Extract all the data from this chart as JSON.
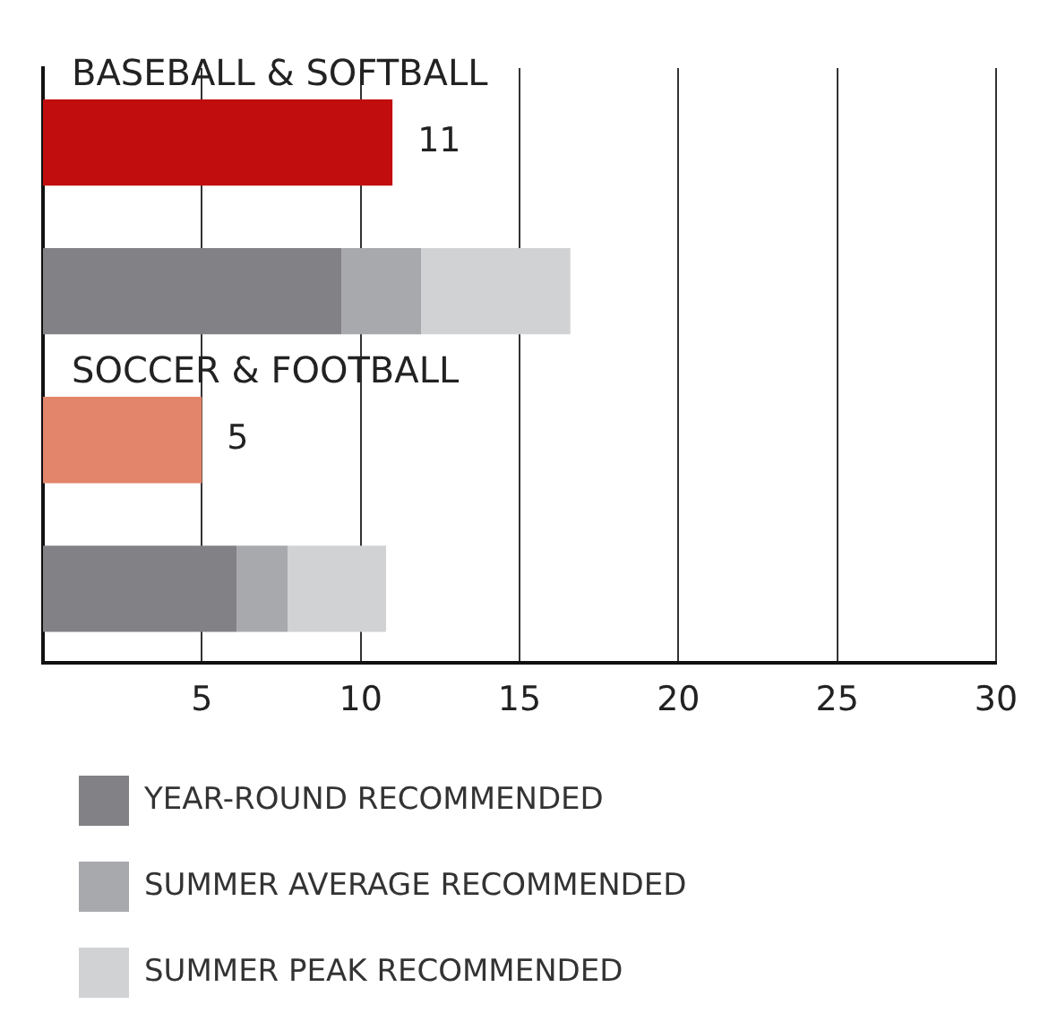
{
  "chart_data": {
    "type": "bar",
    "orientation": "horizontal",
    "stacked": true,
    "categories": [
      "BASEBALL & SOFTBALL",
      null,
      "SOCCER & FOOTBALL",
      null
    ],
    "series": [
      {
        "colors": [
          "#c20d0e",
          "#c20d0e",
          "#e2856a",
          "#e2856a"
        ],
        "values": [
          11,
          null,
          5,
          null
        ],
        "value_labels": [
          "11",
          null,
          "5",
          null
        ]
      },
      {
        "name": "YEAR-ROUND RECOMMENDED",
        "color": "#828286",
        "values": [
          null,
          9.4,
          null,
          6.1
        ]
      },
      {
        "name": "SUMMER AVERAGE RECOMMENDED",
        "color": "#a8a9ad",
        "values": [
          null,
          2.5,
          null,
          1.6
        ]
      },
      {
        "name": "SUMMER PEAK RECOMMENDED",
        "color": "#d1d2d4",
        "values": [
          null,
          4.7,
          null,
          3.1
        ]
      }
    ],
    "xlim": [
      0,
      30
    ],
    "xticks": [
      5,
      10,
      15,
      20,
      25,
      30
    ],
    "grid": "x",
    "legend": "bottom"
  }
}
